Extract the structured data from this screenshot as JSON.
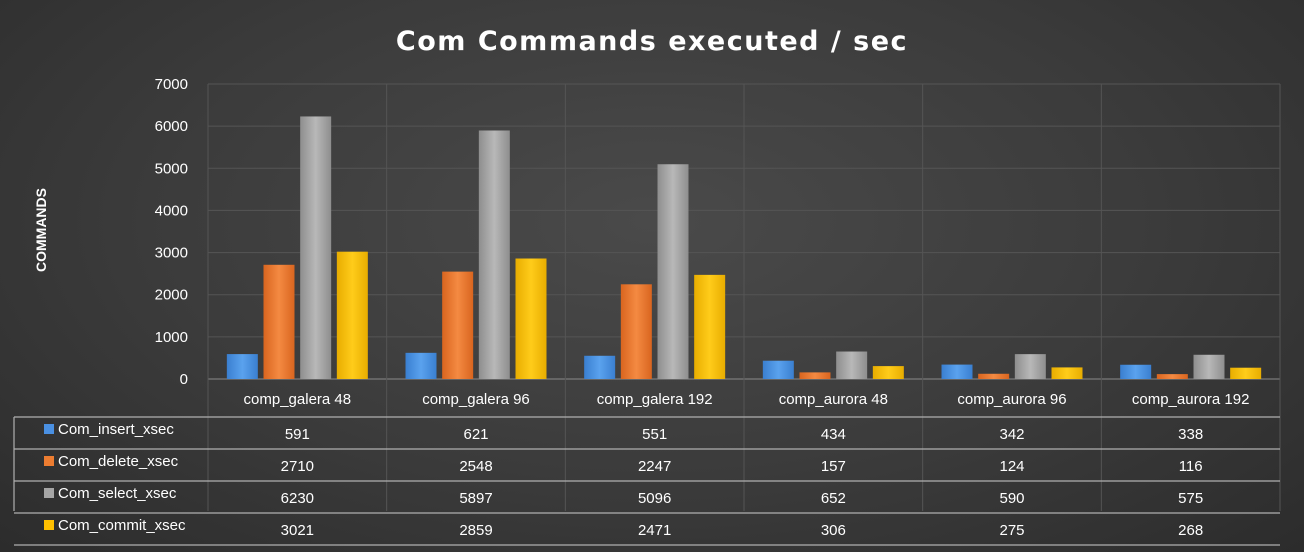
{
  "chart_data": {
    "type": "bar",
    "title": "Com Commands executed / sec",
    "ylabel": "COMMANDS",
    "xlabel": "",
    "ylim": [
      0,
      7000
    ],
    "yticks": [
      0,
      1000,
      2000,
      3000,
      4000,
      5000,
      6000,
      7000
    ],
    "grid": true,
    "legend_placement": "data-table-left",
    "categories": [
      "comp_galera 48",
      "comp_galera 96",
      "comp_galera 192",
      "comp_aurora 48",
      "comp_aurora 96",
      "comp_aurora 192"
    ],
    "series": [
      {
        "name": "Com_insert_xsec",
        "color": "#4a90e2",
        "values": [
          591,
          621,
          551,
          434,
          342,
          338
        ]
      },
      {
        "name": "Com_delete_xsec",
        "color": "#ed7d31",
        "values": [
          2710,
          2548,
          2247,
          157,
          124,
          116
        ]
      },
      {
        "name": "Com_select_xsec",
        "color": "#a5a5a5",
        "values": [
          6230,
          5897,
          5096,
          652,
          590,
          575
        ]
      },
      {
        "name": "Com_commit_xsec",
        "color": "#ffc000",
        "values": [
          3021,
          2859,
          2471,
          306,
          275,
          268
        ]
      }
    ]
  }
}
